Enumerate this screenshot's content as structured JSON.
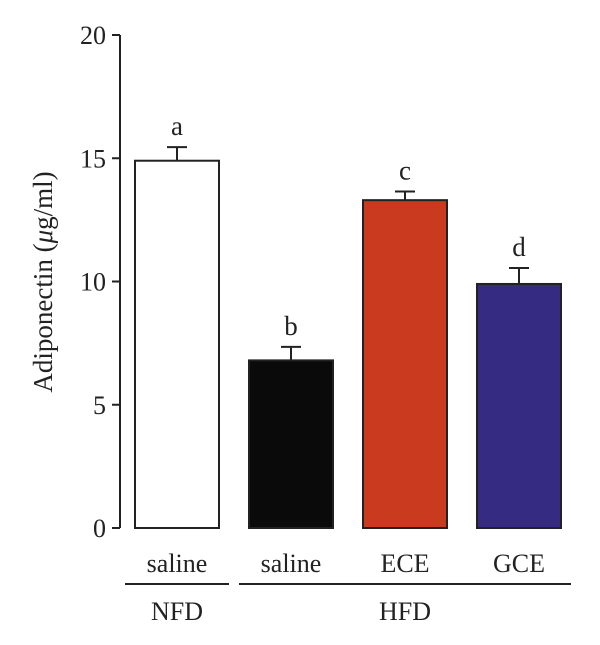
{
  "chart_data": {
    "type": "bar",
    "categories": [
      "saline",
      "saline",
      "ECE",
      "GCE"
    ],
    "groups": [
      {
        "label": "NFD",
        "categories": [
          0
        ]
      },
      {
        "label": "HFD",
        "categories": [
          1,
          2,
          3
        ]
      }
    ],
    "values": [
      14.9,
      6.8,
      13.3,
      9.9
    ],
    "errors": [
      0.55,
      0.55,
      0.35,
      0.65
    ],
    "significance": [
      "a",
      "b",
      "c",
      "d"
    ],
    "colors": [
      "#ffffff",
      "#0a0a0a",
      "#c93a1e",
      "#352b82"
    ],
    "ylabel_main": "Adiponectin (",
    "ylabel_greek": "μ",
    "ylabel_unit": "g/ml)",
    "ylim": [
      0,
      20
    ],
    "yticks": [
      0,
      5,
      10,
      15,
      20
    ]
  }
}
